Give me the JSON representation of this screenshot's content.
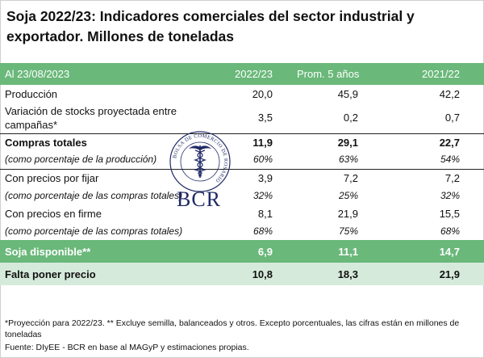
{
  "title": "Soja 2022/23: Indicadores comerciales del sector industrial y exportador. Millones de toneladas",
  "header": {
    "label": "Al 23/08/2023",
    "col1": "2022/23",
    "col2": "Prom. 5 años",
    "col3": "2021/22"
  },
  "rows": [
    {
      "label": "Producción",
      "v1": "20,0",
      "v2": "45,9",
      "v3": "42,2"
    },
    {
      "label": "Variación de stocks proyectada entre campañas*",
      "v1": "3,5",
      "v2": "0,2",
      "v3": "0,7"
    },
    {
      "label": "Compras totales",
      "v1": "11,9",
      "v2": "29,1",
      "v3": "22,7"
    },
    {
      "label": "(como porcentaje de la producción)",
      "v1": "60%",
      "v2": "63%",
      "v3": "54%"
    },
    {
      "label": "Con precios por fijar",
      "v1": "3,9",
      "v2": "7,2",
      "v3": "7,2"
    },
    {
      "label": "(como porcentaje de las compras totales)",
      "v1": "32%",
      "v2": "25%",
      "v3": "32%"
    },
    {
      "label": "Con precios en firme",
      "v1": "8,1",
      "v2": "21,9",
      "v3": "15,5"
    },
    {
      "label": "(como porcentaje de las compras totales)",
      "v1": "68%",
      "v2": "75%",
      "v3": "68%"
    },
    {
      "label": "Soja disponible**",
      "v1": "6,9",
      "v2": "11,1",
      "v3": "14,7"
    },
    {
      "label": "Falta poner precio",
      "v1": "10,8",
      "v2": "18,3",
      "v3": "21,9"
    }
  ],
  "footnotes": {
    "note": "*Proyección para 2022/23. ** Excluye semilla, balanceados y otros. Excepto porcentuales, las cifras están en millones de toneladas",
    "source": "Fuente: DIyEE - BCR en base al MAGyP y estimaciones propias."
  },
  "watermark": {
    "seal_text": "BOLSA DE COMERCIO DE ROSARIO",
    "logo_text": "BCR",
    "color": "#1f2a66"
  },
  "colors": {
    "accent_green": "#6ab87a",
    "light_green": "#d6eadb"
  }
}
